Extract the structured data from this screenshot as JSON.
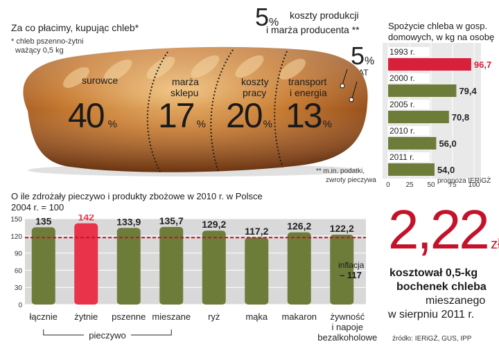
{
  "loaf": {
    "title": "Za co płacimy, kupując chleb*",
    "footnote_line1": "* chleb pszenno-żytni",
    "footnote_line2": "ważący 0,5 kg",
    "top_pct": "5",
    "top_pct_sign": "%",
    "top_label_line1": "koszty produkcji",
    "top_label_line2": "i marża producenta **",
    "vat_pct": "5",
    "vat_pct_sign": "%",
    "vat_label": "VAT",
    "bottom_note_line1": "** m.in. podatki,",
    "bottom_note_line2": "zwroty pieczywa",
    "segments": [
      {
        "label_line1": "surowce",
        "label_line2": "",
        "value": "40",
        "sign": "%"
      },
      {
        "label_line1": "marża",
        "label_line2": "sklepu",
        "value": "17",
        "sign": "%"
      },
      {
        "label_line1": "koszty",
        "label_line2": "pracy",
        "value": "20",
        "sign": "%"
      },
      {
        "label_line1": "transport",
        "label_line2": "i energia",
        "value": "13",
        "sign": "%"
      }
    ],
    "colors": {
      "crust": "#b5651d",
      "crust_dark": "#6b3410",
      "crust_light": "#e8b070"
    }
  },
  "consumption": {
    "title_line1": "Spożycie chleba w gosp.",
    "title_line2": "domowych, w kg na osobę",
    "forecast_note": "prognoza IERiGŻ",
    "colors": {
      "highlight": "#d9203a",
      "bar": "#6e7c3a",
      "label_bg": "#e6e6e6"
    }
  },
  "prices": {
    "title_line1": "O ile zdrożały pieczywo i produkty zbożowe w 2010 r. w Polsce",
    "title_line2": "2004 r. = 100",
    "inflation_label": "inflacja",
    "inflation_value": "– 117",
    "group_label": "pieczywo",
    "colors": {
      "highlight": "#e8334a",
      "bar": "#6e7c3a",
      "panel": "#d9d9d9",
      "ref_line": "#c4122a"
    }
  },
  "callout": {
    "big_value": "2,22",
    "unit": "zł",
    "line1": "kosztował 0,5-kg",
    "line2": "bochenek chleba",
    "line3": "mieszanego",
    "line4": "w sierpniu 2011 r."
  },
  "source": "źródło: IERiGŻ, GUS, IPP",
  "chart_data": [
    {
      "type": "pie",
      "title": "Za co płacimy, kupując chleb*",
      "categories": [
        "surowce",
        "marża sklepu",
        "koszty pracy",
        "transport i energia",
        "koszty produkcji i marża producenta **",
        "VAT"
      ],
      "values": [
        40,
        17,
        20,
        13,
        5,
        5
      ],
      "unit": "%"
    },
    {
      "type": "bar",
      "orientation": "horizontal",
      "title": "Spożycie chleba w gosp. domowych, w kg na osobę",
      "categories": [
        "1993 r.",
        "2000 r.",
        "2005 r.",
        "2010 r.",
        "2011 r."
      ],
      "values": [
        96.7,
        79.4,
        70.8,
        56.0,
        54.0
      ],
      "value_labels": [
        "96,7",
        "79,4",
        "70,8",
        "56,0",
        "54,0"
      ],
      "xlim": [
        0,
        100
      ],
      "xticks": [
        0,
        25,
        50,
        75,
        100
      ],
      "highlight_index": 0
    },
    {
      "type": "bar",
      "title": "O ile zdrożały pieczywo i produkty zbożowe w 2010 r. w Polsce",
      "subtitle": "2004 r. = 100",
      "categories": [
        "łącznie",
        "żytnie",
        "pszenne",
        "mieszane",
        "ryż",
        "mąka",
        "makaron",
        "żywność i napoje bezalkoholowe"
      ],
      "values": [
        135,
        142,
        133.9,
        135.7,
        129.2,
        117.2,
        126.2,
        122.2
      ],
      "value_labels": [
        "135",
        "142",
        "133,9",
        "135,7",
        "129,2",
        "117,2",
        "126,2",
        "122,2"
      ],
      "ylim": [
        0,
        150
      ],
      "yticks": [
        0,
        30,
        60,
        90,
        120,
        150
      ],
      "reference_line": {
        "label": "inflacja",
        "value": 117
      },
      "highlight_index": 1
    }
  ]
}
